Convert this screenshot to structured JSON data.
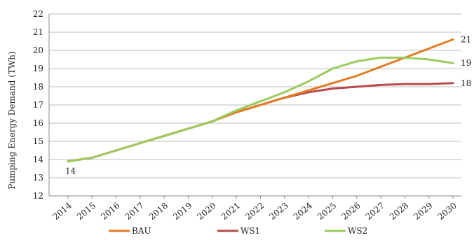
{
  "chart_data": {
    "type": "line",
    "ylabel": "Pumping Energy Demand  (TWh)",
    "xlabel": "",
    "title": "",
    "ylim": [
      12,
      22
    ],
    "yticks": [
      12,
      13,
      14,
      15,
      16,
      17,
      18,
      19,
      20,
      21,
      22
    ],
    "x": [
      "2014",
      "2015",
      "2016",
      "2017",
      "2018",
      "2019",
      "2020",
      "2021",
      "2022",
      "2023",
      "2024",
      "2025",
      "2026",
      "2027",
      "2028",
      "2029",
      "2030"
    ],
    "grid": true,
    "legend_position": "bottom",
    "series": [
      {
        "name": "BAU",
        "color": "#e37b22",
        "values": [
          13.9,
          14.1,
          14.5,
          14.9,
          15.3,
          15.7,
          16.1,
          16.6,
          17.0,
          17.4,
          17.8,
          18.2,
          18.6,
          19.1,
          19.6,
          20.1,
          20.6
        ],
        "end_label": "21"
      },
      {
        "name": "WS1",
        "color": "#b84a4a",
        "values": [
          13.9,
          14.1,
          14.5,
          14.9,
          15.3,
          15.7,
          16.1,
          16.6,
          17.0,
          17.4,
          17.7,
          17.9,
          18.0,
          18.1,
          18.15,
          18.15,
          18.2
        ],
        "end_label": "18"
      },
      {
        "name": "WS2",
        "color": "#9ccb5e",
        "values": [
          13.9,
          14.1,
          14.5,
          14.9,
          15.3,
          15.7,
          16.1,
          16.7,
          17.2,
          17.7,
          18.3,
          19.0,
          19.4,
          19.6,
          19.6,
          19.5,
          19.3
        ],
        "end_label": "19"
      }
    ],
    "annotations": [
      {
        "text": "14",
        "x": "2014",
        "y": 13.9
      }
    ]
  }
}
